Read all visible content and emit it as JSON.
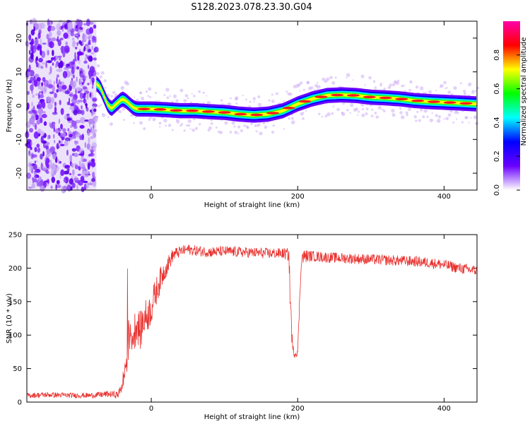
{
  "title": "S128.2023.078.23.30.G04",
  "chart_data": [
    {
      "type": "heatmap",
      "xlabel": "Height of straight line (km)",
      "ylabel": "Frequency (Hz)",
      "xlim": [
        -170,
        445
      ],
      "ylim": [
        -25,
        25
      ],
      "xticks": [
        0,
        200,
        400
      ],
      "yticks": [
        -20,
        -10,
        0,
        10,
        20
      ],
      "colorbar": {
        "label": "Normalized spectral amplitude",
        "range": [
          0,
          1
        ],
        "ticks": [
          0.0,
          0.2,
          0.4,
          0.6,
          0.8
        ],
        "tick_labels": [
          "0.0",
          "0.2",
          "0.4",
          "0.6",
          "0.8"
        ],
        "colors": [
          "#ffffff",
          "#6a00ff",
          "#0000ff",
          "#00ffff",
          "#00ff00",
          "#ffff00",
          "#ff0000",
          "#ff00aa"
        ]
      },
      "noise_region_x": [
        -170,
        -75
      ],
      "ridge": {
        "x": [
          -75,
          -70,
          -65,
          -60,
          -55,
          -50,
          -45,
          -40,
          -35,
          -30,
          -25,
          -20,
          -10,
          0,
          20,
          40,
          60,
          80,
          100,
          120,
          140,
          160,
          180,
          200,
          220,
          240,
          260,
          280,
          300,
          320,
          340,
          360,
          380,
          400,
          420,
          445
        ],
        "freq": [
          6.5,
          5.5,
          3.0,
          0.5,
          -1.0,
          0.0,
          1.0,
          2.0,
          1.5,
          0.5,
          -0.5,
          -1.0,
          -1.0,
          -1.0,
          -1.2,
          -1.5,
          -1.5,
          -1.8,
          -2.0,
          -2.5,
          -2.8,
          -2.5,
          -1.5,
          0.5,
          2.0,
          3.0,
          3.2,
          3.0,
          2.5,
          2.3,
          2.0,
          1.5,
          1.2,
          1.0,
          0.8,
          0.5
        ],
        "amp": [
          0.7,
          0.8,
          0.6,
          0.75,
          0.7,
          0.6,
          0.75,
          0.8,
          0.7,
          0.75,
          0.8,
          0.9,
          0.95,
          0.95,
          0.9,
          0.9,
          0.85,
          0.9,
          0.9,
          0.85,
          0.85,
          0.9,
          0.9,
          0.95,
          0.95,
          0.9,
          0.85,
          0.85,
          0.9,
          0.95,
          0.9,
          0.9,
          0.85,
          0.85,
          0.8,
          0.8
        ]
      }
    },
    {
      "type": "line",
      "xlabel": "Height of straight line (km)",
      "ylabel": "SNR (10 * v/v)",
      "xlim": [
        -170,
        445
      ],
      "ylim": [
        0,
        250
      ],
      "xticks": [
        0,
        200,
        400
      ],
      "yticks": [
        0,
        50,
        100,
        150,
        200,
        250
      ],
      "series": [
        {
          "color": "#e8322f",
          "x": [
            -170,
            -140,
            -110,
            -80,
            -60,
            -45,
            -40,
            -37,
            -35,
            -33,
            -30,
            -28,
            -25,
            -20,
            -15,
            -10,
            -5,
            0,
            5,
            10,
            15,
            20,
            25,
            30,
            40,
            50,
            60,
            80,
            100,
            120,
            140,
            160,
            180,
            188,
            190,
            193,
            196,
            200,
            205,
            210,
            220,
            240,
            260,
            280,
            300,
            320,
            340,
            360,
            380,
            400,
            420,
            445
          ],
          "y": [
            10,
            11,
            10,
            10,
            12,
            11,
            25,
            40,
            55,
            80,
            100,
            110,
            95,
            120,
            105,
            125,
            130,
            140,
            160,
            175,
            190,
            200,
            210,
            220,
            225,
            228,
            226,
            224,
            225,
            224,
            223,
            222,
            222,
            220,
            150,
            80,
            72,
            75,
            215,
            218,
            218,
            216,
            215,
            214,
            213,
            212,
            211,
            210,
            208,
            205,
            200,
            196
          ],
          "noise": [
            4,
            4,
            4,
            4,
            5,
            5,
            12,
            20,
            30,
            35,
            30,
            35,
            30,
            30,
            28,
            28,
            25,
            25,
            22,
            20,
            18,
            14,
            12,
            10,
            8,
            8,
            8,
            8,
            8,
            8,
            8,
            8,
            8,
            10,
            30,
            8,
            6,
            6,
            12,
            10,
            8,
            8,
            8,
            8,
            8,
            8,
            8,
            8,
            8,
            8,
            8,
            8
          ]
        }
      ]
    }
  ]
}
